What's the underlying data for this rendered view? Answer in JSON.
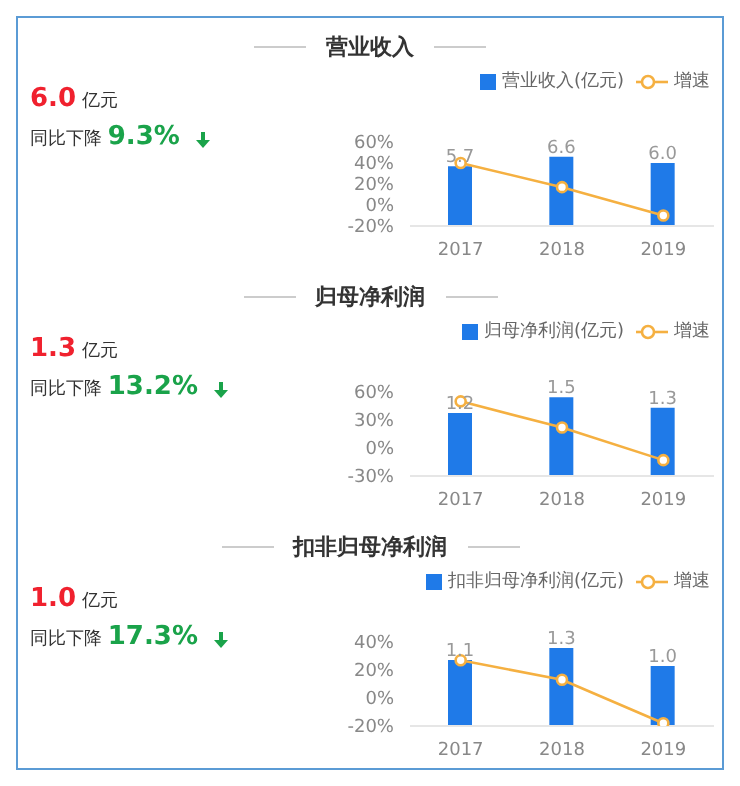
{
  "chart_data": [
    {
      "type": "bar",
      "title": "营业收入",
      "categories": [
        "2017",
        "2018",
        "2019"
      ],
      "annotations": [
        "6.0",
        "亿元",
        "同比下降",
        "9.3%"
      ],
      "legend": "top right",
      "marker": "circle",
      "ylim": [
        -20,
        60
      ],
      "yticks": [
        {
          "value": -20,
          "label": "-20%"
        },
        {
          "value": 0,
          "label": "0%"
        },
        {
          "value": 20,
          "label": "20%"
        },
        {
          "value": 40,
          "label": "40%"
        },
        {
          "value": 60,
          "label": "60%"
        }
      ],
      "series": [
        {
          "name": "营业收入(亿元)",
          "axis": "y2",
          "color": "#1f7ae8",
          "values": [
            5.7,
            6.6,
            6.0
          ],
          "value_labels": [
            "5.7",
            "6.6",
            "6.0"
          ]
        },
        {
          "name": "增速",
          "type": "line",
          "color": "#f5b041",
          "values": [
            40,
            17,
            -10
          ]
        }
      ]
    },
    {
      "type": "bar",
      "title": "归母净利润",
      "categories": [
        "2017",
        "2018",
        "2019"
      ],
      "annotations": [
        "1.3",
        "亿元",
        "同比下降",
        "13.2%"
      ],
      "legend": "top right",
      "marker": "circle",
      "ylim": [
        -30,
        60
      ],
      "yticks": [
        {
          "value": -30,
          "label": "-30%"
        },
        {
          "value": 0,
          "label": "0%"
        },
        {
          "value": 30,
          "label": "30%"
        },
        {
          "value": 60,
          "label": "60%"
        }
      ],
      "series": [
        {
          "name": "归母净利润(亿元)",
          "axis": "y2",
          "color": "#1f7ae8",
          "values": [
            1.2,
            1.5,
            1.3
          ],
          "value_labels": [
            "1.2",
            "1.5",
            "1.3"
          ]
        },
        {
          "name": "增速",
          "type": "line",
          "color": "#f5b041",
          "values": [
            50,
            22,
            -13
          ]
        }
      ]
    },
    {
      "type": "bar",
      "title": "扣非归母净利润",
      "categories": [
        "2017",
        "2018",
        "2019"
      ],
      "annotations": [
        "1.0",
        "亿元",
        "同比下降",
        "17.3%"
      ],
      "legend": "top right",
      "marker": "circle",
      "ylim": [
        -20,
        40
      ],
      "yticks": [
        {
          "value": -20,
          "label": "-20%"
        },
        {
          "value": 0,
          "label": "0%"
        },
        {
          "value": 20,
          "label": "20%"
        },
        {
          "value": 40,
          "label": "40%"
        }
      ],
      "series": [
        {
          "name": "扣非归母净利润(亿元)",
          "axis": "y2",
          "color": "#1f7ae8",
          "values": [
            1.1,
            1.3,
            1.0
          ],
          "value_labels": [
            "1.1",
            "1.3",
            "1.0"
          ]
        },
        {
          "name": "增速",
          "type": "line",
          "color": "#f5b041",
          "values": [
            27,
            13,
            -18
          ]
        }
      ]
    }
  ]
}
